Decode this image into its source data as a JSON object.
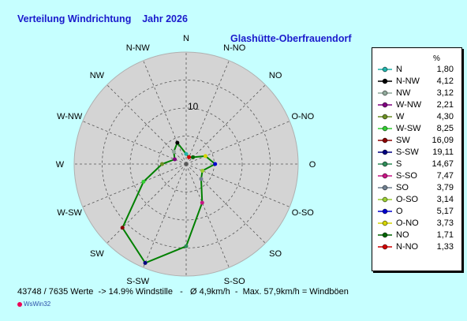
{
  "header": {
    "title": "Verteilung Windrichtung    Jahr 2026",
    "station": "Glashütte-Oberfrauendorf"
  },
  "chart_data": {
    "type": "radar",
    "directions": [
      "N",
      "N-NO",
      "NO",
      "O-NO",
      "O",
      "O-SO",
      "SO",
      "S-SO",
      "S",
      "S-SW",
      "SW",
      "W-SW",
      "W",
      "W-NW",
      "NW",
      "N-NW"
    ],
    "values": [
      1.8,
      1.33,
      1.71,
      3.73,
      5.17,
      3.14,
      3.79,
      7.47,
      14.67,
      19.11,
      16.09,
      8.25,
      4.3,
      2.21,
      3.12,
      4.12
    ],
    "ring_label": "10",
    "rmax": 20,
    "rings": [
      5,
      10,
      15,
      20
    ],
    "grid": true,
    "legend_position": "right",
    "line_color": "#008000",
    "area_color": "#d4d4d4"
  },
  "legend": {
    "unit": "%",
    "items": [
      {
        "label": "N",
        "value": "1,80",
        "color": "#20b2aa"
      },
      {
        "label": "N-NW",
        "value": "4,12",
        "color": "#000000"
      },
      {
        "label": "NW",
        "value": "3,12",
        "color": "#8fa89a"
      },
      {
        "label": "W-NW",
        "value": "2,21",
        "color": "#800080"
      },
      {
        "label": "W",
        "value": "4,30",
        "color": "#6b8e23"
      },
      {
        "label": "W-SW",
        "value": "8,25",
        "color": "#32cd32"
      },
      {
        "label": "SW",
        "value": "16,09",
        "color": "#8b0000"
      },
      {
        "label": "S-SW",
        "value": "19,11",
        "color": "#000080"
      },
      {
        "label": "S",
        "value": "14,67",
        "color": "#2e8b57"
      },
      {
        "label": "S-SO",
        "value": "7,47",
        "color": "#c71585"
      },
      {
        "label": "SO",
        "value": "3,79",
        "color": "#708090"
      },
      {
        "label": "O-SO",
        "value": "3,14",
        "color": "#9acd32"
      },
      {
        "label": "O",
        "value": "5,17",
        "color": "#0000cd"
      },
      {
        "label": "O-NO",
        "value": "3,73",
        "color": "#d4d400"
      },
      {
        "label": "NO",
        "value": "1,71",
        "color": "#006400"
      },
      {
        "label": "N-NO",
        "value": "1,33",
        "color": "#d00000"
      }
    ]
  },
  "footer": {
    "stats": "43748 / 7635 Werte  -> 14.9% Windstille   -   Ø 4,9km/h  -  Max. 57,9km/h = Windböen",
    "brand": "WsWin32"
  }
}
